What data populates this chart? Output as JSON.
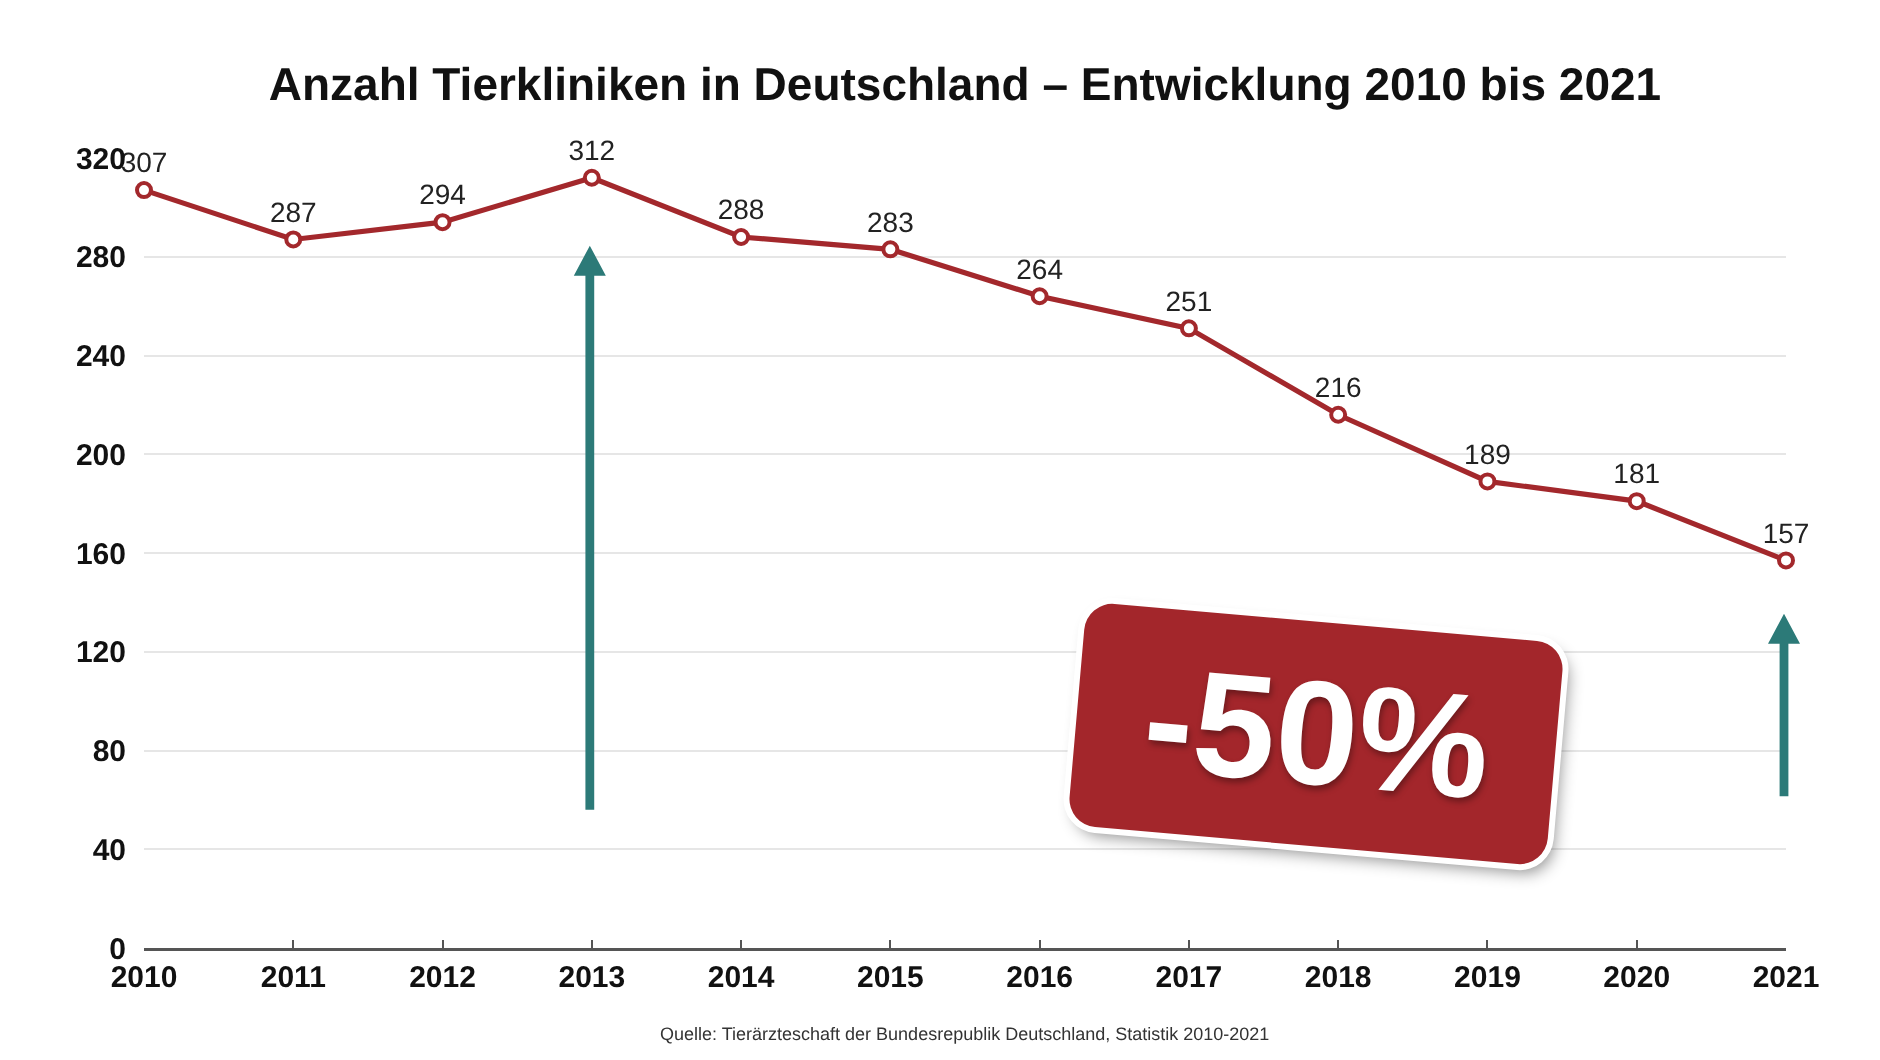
{
  "chart_data": {
    "type": "line",
    "title": "Anzahl Tierkliniken in Deutschland – Entwicklung 2010 bis 2021",
    "x": [
      2010,
      2011,
      2012,
      2013,
      2014,
      2015,
      2016,
      2017,
      2018,
      2019,
      2020,
      2021
    ],
    "series": [
      {
        "color": "#a3282c",
        "values": [
          307,
          287,
          294,
          312,
          288,
          283,
          264,
          251,
          216,
          189,
          181,
          157
        ]
      }
    ],
    "xlim": [
      2010,
      2021
    ],
    "xticks": [
      2010,
      2011,
      2012,
      2013,
      2014,
      2015,
      2016,
      2017,
      2018,
      2019,
      2020,
      2021
    ],
    "ylim": [
      0,
      320
    ],
    "yticks": [
      0,
      40,
      80,
      120,
      160,
      200,
      240,
      280,
      320
    ],
    "grid": "y",
    "marker": "circle",
    "line_style": "solid",
    "data_labels": true,
    "annotations": [
      "-50%",
      "Quelle: Tierärzteschaft der Bundesrepublik Deutschland, Statistik 2010-2021"
    ]
  }
}
